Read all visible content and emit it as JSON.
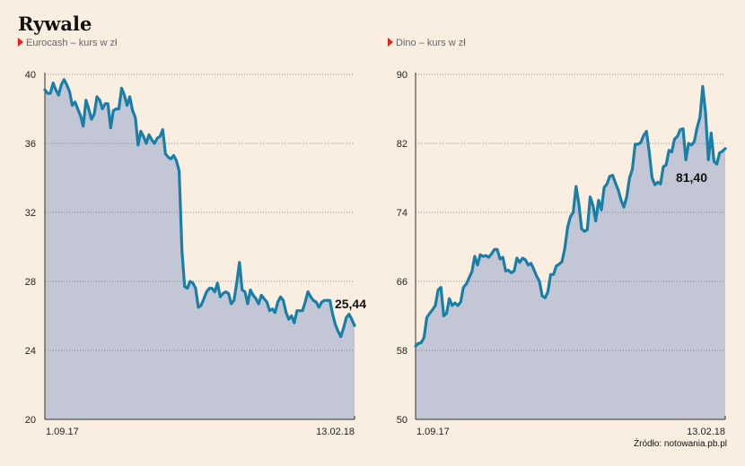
{
  "title": "Rywale",
  "source": "Źródło: notowania.pb.pl",
  "colors": {
    "line": "#1a7fa6",
    "area": "#c3c7d5",
    "marker": "#e2231a",
    "background": "#faeee0"
  },
  "chart_data": [
    {
      "type": "area",
      "subtitle": "Eurocash – kurs w zł",
      "series_name": "Eurocash",
      "x_labels": [
        "1.09.17",
        "13.02.18"
      ],
      "ylim": [
        20,
        40
      ],
      "yticks": [
        20,
        24,
        28,
        32,
        36,
        40
      ],
      "last_value_label": "25,44",
      "grid": true,
      "values": [
        39.1,
        38.9,
        38.9,
        39.5,
        39.1,
        38.8,
        39.4,
        39.7,
        39.4,
        39.0,
        38.2,
        38.4,
        38.0,
        37.6,
        37.0,
        38.5,
        38.0,
        37.4,
        37.7,
        38.7,
        38.5,
        38.0,
        38.3,
        38.3,
        36.9,
        37.9,
        38.0,
        38.0,
        39.2,
        38.8,
        38.2,
        38.7,
        37.9,
        37.5,
        35.9,
        36.7,
        36.4,
        36.0,
        36.5,
        36.2,
        36.0,
        36.3,
        36.4,
        36.8,
        35.4,
        35.2,
        35.1,
        35.3,
        35.0,
        34.4,
        29.8,
        27.7,
        27.6,
        28.0,
        27.9,
        27.6,
        26.5,
        26.6,
        27.0,
        27.4,
        27.6,
        27.6,
        27.4,
        27.9,
        27.1,
        27.3,
        27.4,
        27.3,
        26.7,
        26.9,
        27.9,
        29.1,
        27.5,
        27.4,
        26.7,
        27.5,
        27.2,
        27.0,
        26.7,
        27.2,
        27.0,
        26.8,
        26.3,
        26.4,
        26.2,
        26.8,
        27.1,
        26.9,
        26.2,
        25.8,
        26.0,
        25.6,
        26.3,
        26.3,
        26.3,
        26.8,
        27.4,
        27.1,
        26.9,
        26.8,
        26.5,
        26.8,
        26.9,
        26.9,
        26.9,
        26.1,
        25.5,
        25.1,
        24.8,
        25.3,
        25.9,
        26.1,
        25.8,
        25.44
      ]
    },
    {
      "type": "area",
      "subtitle": "Dino – kurs w zł",
      "series_name": "Dino",
      "x_labels": [
        "1.09.17",
        "13.02.18"
      ],
      "ylim": [
        50,
        90
      ],
      "yticks": [
        50,
        58,
        66,
        74,
        82,
        90
      ],
      "last_value_label": "81,40",
      "grid": true,
      "values": [
        58.5,
        58.8,
        58.9,
        59.5,
        61.8,
        62.3,
        62.7,
        63.2,
        65.0,
        65.3,
        62.0,
        62.3,
        64.0,
        63.2,
        63.5,
        63.2,
        63.6,
        65.3,
        65.7,
        66.4,
        67.1,
        68.9,
        67.9,
        69.1,
        68.9,
        69.0,
        68.8,
        69.2,
        69.7,
        69.7,
        68.6,
        68.8,
        67.2,
        67.3,
        67.0,
        67.2,
        68.7,
        68.2,
        68.7,
        68.5,
        67.9,
        68.1,
        67.4,
        66.6,
        66.0,
        64.3,
        64.1,
        64.8,
        66.8,
        66.8,
        67.8,
        68.0,
        68.3,
        69.8,
        72.3,
        73.5,
        74.0,
        77.0,
        75.0,
        72.1,
        71.8,
        72.0,
        75.8,
        74.8,
        73.0,
        75.4,
        74.3,
        76.9,
        77.3,
        78.2,
        78.3,
        77.4,
        76.6,
        75.4,
        74.6,
        75.8,
        78.0,
        79.0,
        81.9,
        81.9,
        82.1,
        82.9,
        83.4,
        81.0,
        78.0,
        77.2,
        77.5,
        77.3,
        79.3,
        79.5,
        81.2,
        81.0,
        82.5,
        82.8,
        83.6,
        83.7,
        80.1,
        82.0,
        81.8,
        82.2,
        83.8,
        85.0,
        88.6,
        85.6,
        80.1,
        83.2,
        79.9,
        79.6,
        80.9,
        81.1,
        81.4
      ]
    }
  ]
}
